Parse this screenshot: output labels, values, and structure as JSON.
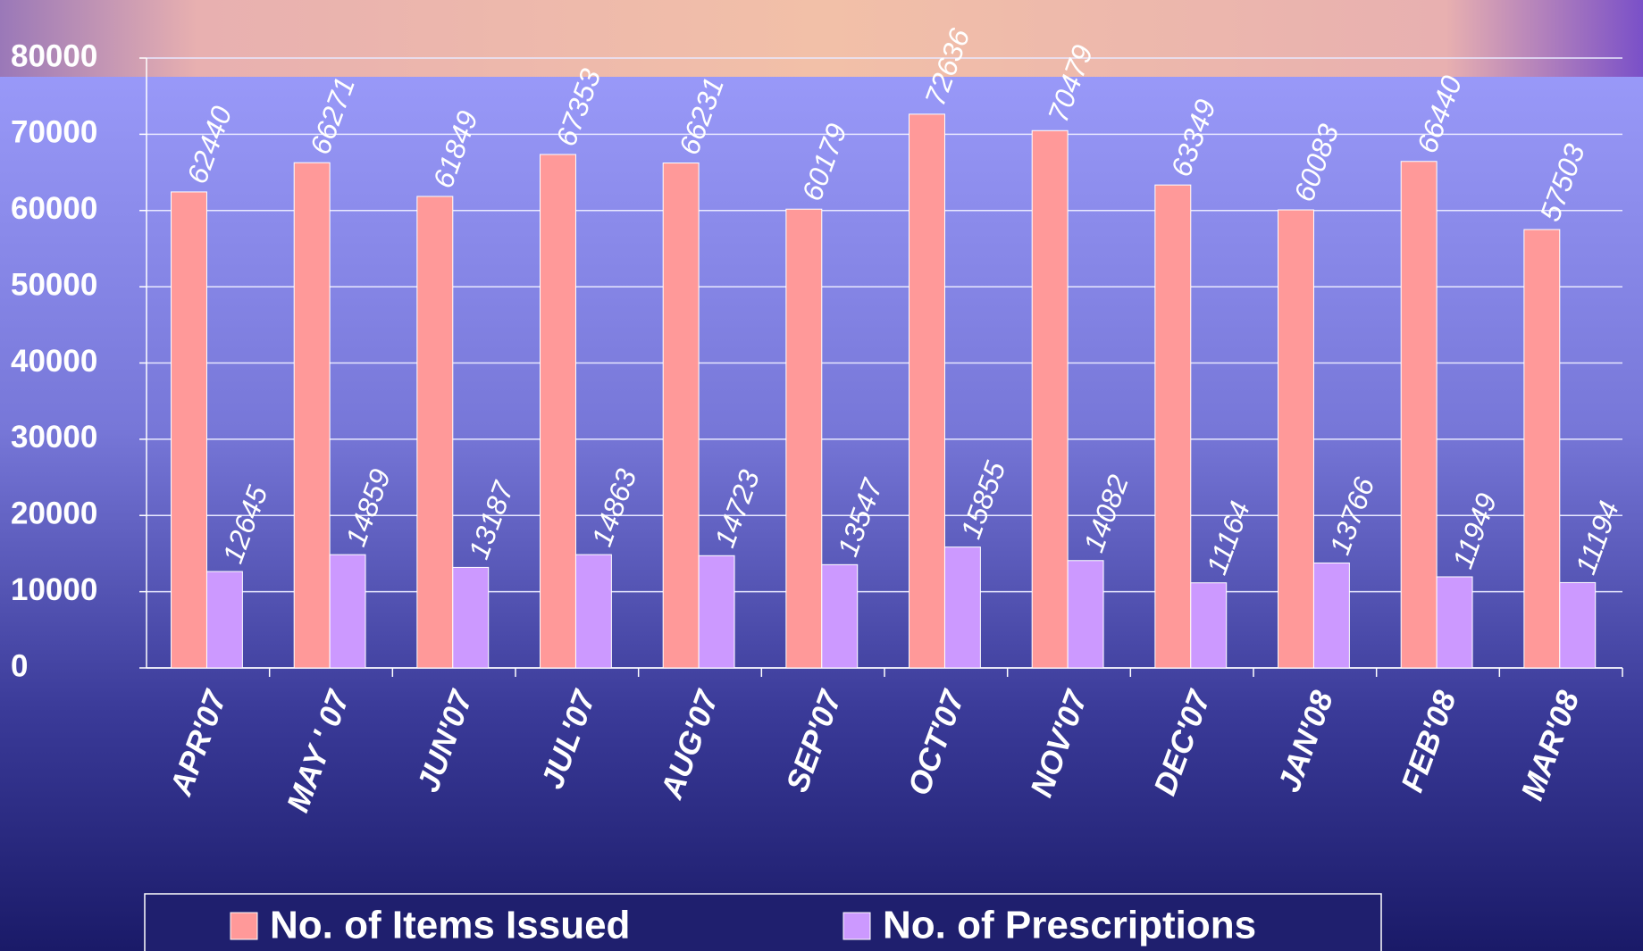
{
  "chart_data": {
    "type": "bar",
    "categories": [
      "APR'07",
      "MAY ' 07",
      "JUN'07",
      "JUL'07",
      "AUG'07",
      "SEP'07",
      "OCT'07",
      "NOV'07",
      "DEC'07",
      "JAN'08",
      "FEB'08",
      "MAR'08"
    ],
    "series": [
      {
        "name": "No. of Items Issued",
        "color": "#ff9999",
        "values": [
          62440,
          66271,
          61849,
          67353,
          66231,
          60179,
          72636,
          70479,
          63349,
          60083,
          66440,
          57503
        ]
      },
      {
        "name": "No. of Prescriptions",
        "color": "#cc99ff",
        "values": [
          12645,
          14859,
          13187,
          14863,
          14723,
          13547,
          15855,
          14082,
          11164,
          13766,
          11949,
          11194
        ]
      }
    ],
    "ylim": [
      0,
      80000
    ],
    "yticks": [
      0,
      10000,
      20000,
      30000,
      40000,
      50000,
      60000,
      70000,
      80000
    ],
    "grid": true
  }
}
